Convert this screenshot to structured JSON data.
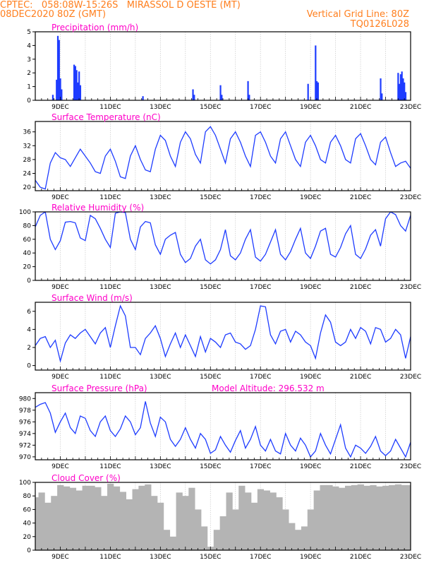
{
  "header": {
    "line1_left": "CPTEC:   058:08W-15:26S   MIRASSOL D OESTE (MT)",
    "line2_left": "08DEC2020 80Z (GMT)",
    "line2_right": "Vertical Grid Line: 80Z",
    "line3_right": "TQ0126L028"
  },
  "colors": {
    "header": "#ff7f1e",
    "title": "#ff00c8",
    "series": "#1e3cff",
    "bars": "#1e3cff",
    "cloud": "#b4b4b4",
    "frame": "#000000"
  },
  "chart_data": [
    {
      "type": "bar",
      "title": "Precipitation (mm/h)",
      "ylim": [
        0,
        5
      ],
      "yticks": [
        "0",
        "1",
        "2",
        "3",
        "4",
        "5"
      ],
      "xticks": [
        "9DEC",
        "11DEC",
        "13DEC",
        "15DEC",
        "17DEC",
        "19DEC",
        "21DEC",
        "23DEC"
      ],
      "bars": [
        [
          8.7,
          0.4
        ],
        [
          8.85,
          1.5
        ],
        [
          8.9,
          4.7
        ],
        [
          8.95,
          4.4
        ],
        [
          9.0,
          1.6
        ],
        [
          9.05,
          0.8
        ],
        [
          9.55,
          2.6
        ],
        [
          9.6,
          2.5
        ],
        [
          9.65,
          2.2
        ],
        [
          9.7,
          1.3
        ],
        [
          9.75,
          2.1
        ],
        [
          9.8,
          1.1
        ],
        [
          12.3,
          0.3
        ],
        [
          14.3,
          0.8
        ],
        [
          14.35,
          0.4
        ],
        [
          15.4,
          1.1
        ],
        [
          15.45,
          0.4
        ],
        [
          16.5,
          1.4
        ],
        [
          16.55,
          0.4
        ],
        [
          18.9,
          1.2
        ],
        [
          19.2,
          4.0
        ],
        [
          19.25,
          1.4
        ],
        [
          19.3,
          1.3
        ],
        [
          21.8,
          1.6
        ],
        [
          21.85,
          0.5
        ],
        [
          22.5,
          2.0
        ],
        [
          22.55,
          1.2
        ],
        [
          22.6,
          1.9
        ],
        [
          22.65,
          2.1
        ],
        [
          22.7,
          1.6
        ],
        [
          22.75,
          1.3
        ],
        [
          22.8,
          0.6
        ]
      ]
    },
    {
      "type": "line",
      "title": "Surface Temperature (nC)",
      "ylim": [
        19,
        39
      ],
      "yticks": [
        "20",
        "24",
        "28",
        "32",
        "36"
      ],
      "xticks": [
        "9DEC",
        "11DEC",
        "13DEC",
        "15DEC",
        "17DEC",
        "19DEC",
        "21DEC",
        "23DEC"
      ],
      "x": [
        8.0,
        8.2,
        8.4,
        8.6,
        8.8,
        9.0,
        9.2,
        9.4,
        9.6,
        9.8,
        10.0,
        10.2,
        10.4,
        10.6,
        10.8,
        11.0,
        11.2,
        11.4,
        11.6,
        11.8,
        12.0,
        12.2,
        12.4,
        12.6,
        12.8,
        13.0,
        13.2,
        13.4,
        13.6,
        13.8,
        14.0,
        14.2,
        14.4,
        14.6,
        14.8,
        15.0,
        15.2,
        15.4,
        15.6,
        15.8,
        16.0,
        16.2,
        16.4,
        16.6,
        16.8,
        17.0,
        17.2,
        17.4,
        17.6,
        17.8,
        18.0,
        18.2,
        18.4,
        18.6,
        18.8,
        19.0,
        19.2,
        19.4,
        19.6,
        19.8,
        20.0,
        20.2,
        20.4,
        20.6,
        20.8,
        21.0,
        21.2,
        21.4,
        21.6,
        21.8,
        22.0,
        22.2,
        22.4,
        22.6,
        22.8,
        23.0
      ],
      "y": [
        22,
        20,
        19.5,
        27,
        30,
        28.5,
        28,
        26,
        28.5,
        31,
        29,
        27,
        24.5,
        24,
        29,
        31,
        27.5,
        23,
        22.5,
        29,
        32,
        28,
        25,
        24.5,
        31,
        35,
        33.5,
        29,
        26,
        33,
        36,
        34,
        29.5,
        27,
        36,
        37.5,
        35,
        31,
        27,
        34,
        36,
        33,
        29,
        26,
        35,
        36,
        33,
        29,
        27,
        34,
        36,
        32,
        28,
        26,
        33,
        35,
        32,
        28,
        27,
        33,
        35,
        32,
        28,
        27,
        34,
        35.5,
        32,
        28,
        26.5,
        33,
        34.5,
        30,
        26,
        27,
        27.5,
        25.5
      ]
    },
    {
      "type": "line",
      "title": "Relative Humidity (%)",
      "ylim": [
        0,
        100
      ],
      "yticks": [
        "0",
        "20",
        "40",
        "60",
        "80",
        "100"
      ],
      "xticks": [
        "9DEC",
        "11DEC",
        "13DEC",
        "15DEC",
        "17DEC",
        "19DEC",
        "21DEC",
        "23DEC"
      ],
      "x": [
        8.0,
        8.2,
        8.4,
        8.6,
        8.8,
        9.0,
        9.2,
        9.4,
        9.6,
        9.8,
        10.0,
        10.2,
        10.4,
        10.6,
        10.8,
        11.0,
        11.2,
        11.4,
        11.6,
        11.8,
        12.0,
        12.2,
        12.4,
        12.6,
        12.8,
        13.0,
        13.2,
        13.4,
        13.6,
        13.8,
        14.0,
        14.2,
        14.4,
        14.6,
        14.8,
        15.0,
        15.2,
        15.4,
        15.6,
        15.8,
        16.0,
        16.2,
        16.4,
        16.6,
        16.8,
        17.0,
        17.2,
        17.4,
        17.6,
        17.8,
        18.0,
        18.2,
        18.4,
        18.6,
        18.8,
        19.0,
        19.2,
        19.4,
        19.6,
        19.8,
        20.0,
        20.2,
        20.4,
        20.6,
        20.8,
        21.0,
        21.2,
        21.4,
        21.6,
        21.8,
        22.0,
        22.2,
        22.4,
        22.6,
        22.8,
        23.0
      ],
      "y": [
        78,
        95,
        100,
        60,
        45,
        58,
        85,
        86,
        84,
        62,
        58,
        95,
        90,
        76,
        60,
        48,
        98,
        100,
        99,
        60,
        45,
        78,
        86,
        84,
        52,
        38,
        60,
        66,
        70,
        38,
        26,
        32,
        50,
        60,
        30,
        24,
        30,
        45,
        74,
        36,
        30,
        40,
        60,
        74,
        34,
        28,
        38,
        56,
        74,
        38,
        30,
        42,
        60,
        76,
        40,
        32,
        50,
        72,
        76,
        38,
        34,
        48,
        68,
        80,
        38,
        32,
        46,
        66,
        74,
        50,
        90,
        100,
        96,
        80,
        72,
        95
      ]
    },
    {
      "type": "line",
      "title": "Surface Wind (m/s)",
      "ylim": [
        -0.5,
        7
      ],
      "yticks": [
        "0",
        "2",
        "4",
        "6"
      ],
      "xticks": [
        "9DEC",
        "11DEC",
        "13DEC",
        "15DEC",
        "17DEC",
        "19DEC",
        "21DEC",
        "23DEC"
      ],
      "x": [
        8.0,
        8.2,
        8.4,
        8.6,
        8.8,
        9.0,
        9.2,
        9.4,
        9.6,
        9.8,
        10.0,
        10.2,
        10.4,
        10.6,
        10.8,
        11.0,
        11.2,
        11.4,
        11.6,
        11.8,
        12.0,
        12.2,
        12.4,
        12.6,
        12.8,
        13.0,
        13.2,
        13.4,
        13.6,
        13.8,
        14.0,
        14.2,
        14.4,
        14.6,
        14.8,
        15.0,
        15.2,
        15.4,
        15.6,
        15.8,
        16.0,
        16.2,
        16.4,
        16.6,
        16.8,
        17.0,
        17.2,
        17.4,
        17.6,
        17.8,
        18.0,
        18.2,
        18.4,
        18.6,
        18.8,
        19.0,
        19.2,
        19.4,
        19.6,
        19.8,
        20.0,
        20.2,
        20.4,
        20.6,
        20.8,
        21.0,
        21.2,
        21.4,
        21.6,
        21.8,
        22.0,
        22.2,
        22.4,
        22.6,
        22.8,
        23.0
      ],
      "y": [
        2.2,
        3.0,
        3.2,
        2.0,
        2.8,
        0.5,
        2.5,
        3.4,
        3.0,
        3.6,
        4.0,
        3.2,
        2.4,
        3.6,
        4.2,
        2.0,
        4.4,
        6.6,
        5.5,
        2.0,
        2.0,
        1.2,
        3.0,
        3.6,
        4.4,
        3.0,
        1.0,
        2.4,
        3.6,
        2.0,
        3.4,
        2.2,
        1.0,
        3.2,
        1.5,
        3.0,
        2.6,
        2.0,
        3.4,
        3.6,
        2.6,
        2.4,
        1.8,
        2.2,
        4.0,
        6.6,
        6.5,
        3.4,
        2.4,
        3.8,
        4.0,
        2.6,
        3.8,
        3.4,
        2.6,
        2.2,
        0.8,
        3.6,
        5.6,
        4.8,
        2.6,
        2.2,
        2.6,
        4.0,
        3.0,
        4.2,
        3.8,
        2.4,
        4.2,
        4.0,
        2.6,
        3.0,
        4.0,
        3.4,
        0.8,
        3.2
      ]
    },
    {
      "type": "line",
      "title": "Surface Pressure (hPa)",
      "annotation": "Model Altitude: 296.532 m",
      "ylim": [
        969.5,
        981
      ],
      "yticks": [
        "970",
        "972",
        "974",
        "976",
        "978",
        "980"
      ],
      "xticks": [
        "9DEC",
        "11DEC",
        "13DEC",
        "15DEC",
        "17DEC",
        "19DEC",
        "21DEC",
        "23DEC"
      ],
      "x": [
        8.0,
        8.2,
        8.4,
        8.6,
        8.8,
        9.0,
        9.2,
        9.4,
        9.6,
        9.8,
        10.0,
        10.2,
        10.4,
        10.6,
        10.8,
        11.0,
        11.2,
        11.4,
        11.6,
        11.8,
        12.0,
        12.2,
        12.4,
        12.6,
        12.8,
        13.0,
        13.2,
        13.4,
        13.6,
        13.8,
        14.0,
        14.2,
        14.4,
        14.6,
        14.8,
        15.0,
        15.2,
        15.4,
        15.6,
        15.8,
        16.0,
        16.2,
        16.4,
        16.6,
        16.8,
        17.0,
        17.2,
        17.4,
        17.6,
        17.8,
        18.0,
        18.2,
        18.4,
        18.6,
        18.8,
        19.0,
        19.2,
        19.4,
        19.6,
        19.8,
        20.0,
        20.2,
        20.4,
        20.6,
        20.8,
        21.0,
        21.2,
        21.4,
        21.6,
        21.8,
        22.0,
        22.2,
        22.4,
        22.6,
        22.8,
        23.0
      ],
      "y": [
        978.5,
        979.0,
        979.3,
        977.5,
        974.2,
        976.0,
        977.5,
        975.0,
        974.0,
        977.0,
        976.6,
        974.5,
        973.5,
        976.0,
        977.0,
        974.5,
        973.5,
        974.8,
        977.0,
        976.0,
        973.8,
        975.0,
        979.5,
        975.8,
        973.5,
        976.8,
        976.0,
        973.0,
        971.8,
        973.0,
        975.0,
        973.0,
        971.5,
        974.0,
        973.0,
        970.6,
        971.2,
        973.5,
        972.0,
        970.8,
        972.8,
        974.5,
        971.5,
        973.0,
        975.2,
        972.0,
        971.0,
        973.0,
        971.0,
        970.5,
        974.0,
        972.0,
        971.0,
        973.2,
        972.0,
        970.0,
        971.0,
        974.0,
        972.0,
        970.5,
        973.0,
        975.5,
        971.5,
        970.0,
        972.0,
        971.5,
        970.6,
        971.8,
        973.5,
        971.0,
        970.2,
        971.0,
        973.0,
        971.5,
        970.0,
        972.5
      ]
    },
    {
      "type": "bar",
      "title": "Cloud Cover (%)",
      "ylim": [
        0,
        100
      ],
      "yticks": [
        "0",
        "20",
        "40",
        "60",
        "80",
        "100"
      ],
      "xticks": [
        "9DEC",
        "11DEC",
        "13DEC",
        "15DEC",
        "17DEC",
        "19DEC",
        "21DEC",
        "23DEC"
      ],
      "x": [
        8.0,
        8.25,
        8.5,
        8.75,
        9.0,
        9.25,
        9.5,
        9.75,
        10.0,
        10.25,
        10.5,
        10.75,
        11.0,
        11.25,
        11.5,
        11.75,
        12.0,
        12.25,
        12.5,
        12.75,
        13.0,
        13.25,
        13.5,
        13.75,
        14.0,
        14.25,
        14.5,
        14.75,
        15.0,
        15.25,
        15.5,
        15.75,
        16.0,
        16.25,
        16.5,
        16.75,
        17.0,
        17.25,
        17.5,
        17.75,
        18.0,
        18.25,
        18.5,
        18.75,
        19.0,
        19.25,
        19.5,
        19.75,
        20.0,
        20.25,
        20.5,
        20.75,
        21.0,
        21.25,
        21.5,
        21.75,
        22.0,
        22.25,
        22.5,
        22.75,
        23.0
      ],
      "values": [
        78,
        85,
        70,
        80,
        96,
        94,
        92,
        88,
        95,
        95,
        93,
        80,
        98,
        94,
        86,
        75,
        90,
        95,
        97,
        80,
        70,
        30,
        20,
        85,
        80,
        92,
        60,
        35,
        5,
        30,
        50,
        85,
        60,
        95,
        85,
        70,
        90,
        88,
        85,
        78,
        60,
        40,
        30,
        35,
        60,
        88,
        96,
        96,
        94,
        92,
        95,
        96,
        97,
        95,
        96,
        94,
        95,
        96,
        97,
        96,
        96
      ]
    }
  ]
}
